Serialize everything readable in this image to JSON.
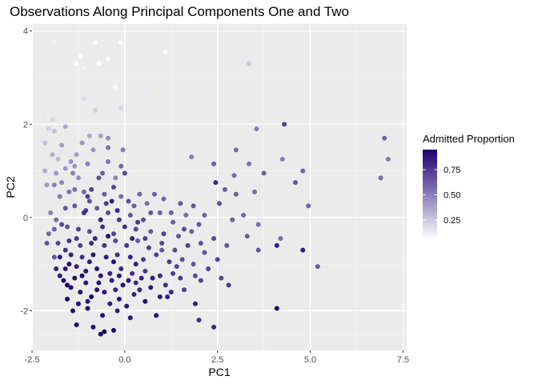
{
  "chart_data": {
    "type": "scatter",
    "title": "Observations Along Principal Components One and Two",
    "xlabel": "PC1",
    "ylabel": "PC2",
    "xlim": [
      -2.5,
      7.6
    ],
    "ylim": [
      -2.85,
      4.15
    ],
    "x_ticks": [
      -2.5,
      0,
      2.5,
      5,
      7.5
    ],
    "x_tick_labels": [
      "-2.5",
      "0.0",
      "2.5",
      "5.0",
      "7.5"
    ],
    "y_ticks": [
      -2,
      0,
      2,
      4
    ],
    "y_tick_labels": [
      "-2",
      "0",
      "2",
      "4"
    ],
    "grid": true,
    "background": "#EBEBEB",
    "legend": {
      "title": "Admitted Proportion",
      "position": "right",
      "range": [
        0.05,
        0.95
      ],
      "ticks": [
        0.25,
        0.5,
        0.75
      ],
      "tick_labels": [
        "0.25",
        "0.50",
        "0.75"
      ],
      "low_color": "#FFFFFF",
      "high_color": "#1A0070"
    },
    "points": [
      [
        -2.05,
        3.1,
        0.12
      ],
      [
        -1.9,
        3.75,
        0.1
      ],
      [
        -1.35,
        3.6,
        0.12
      ],
      [
        -1.2,
        3.45,
        0.06
      ],
      [
        -1.3,
        3.3,
        0.06
      ],
      [
        -0.8,
        3.75,
        0.06
      ],
      [
        -0.1,
        3.75,
        0.05
      ],
      [
        1.1,
        3.55,
        0.05
      ],
      [
        -0.45,
        3.4,
        0.06
      ],
      [
        -0.7,
        3.3,
        0.06
      ],
      [
        -1.55,
        3.1,
        0.12
      ],
      [
        -1.1,
        3.2,
        0.1
      ],
      [
        -0.9,
        3.1,
        0.12
      ],
      [
        -0.25,
        2.8,
        0.08
      ],
      [
        0.6,
        2.75,
        0.14
      ],
      [
        0.55,
        2.7,
        0.12
      ],
      [
        -1.1,
        2.55,
        0.18
      ],
      [
        -0.8,
        2.3,
        0.22
      ],
      [
        -0.1,
        2.35,
        0.2
      ],
      [
        3.35,
        3.3,
        0.25
      ],
      [
        -2.2,
        2.15,
        0.14
      ],
      [
        -1.95,
        2.1,
        0.2
      ],
      [
        -2.05,
        1.9,
        0.22
      ],
      [
        -1.9,
        1.85,
        0.28
      ],
      [
        -1.6,
        1.95,
        0.36
      ],
      [
        -1.15,
        1.6,
        0.42
      ],
      [
        -0.95,
        1.75,
        0.36
      ],
      [
        -0.65,
        1.75,
        0.38
      ],
      [
        -2.15,
        1.6,
        0.28
      ],
      [
        -1.95,
        1.35,
        0.34
      ],
      [
        -1.8,
        1.25,
        0.3
      ],
      [
        -1.3,
        1.35,
        0.4
      ],
      [
        -1.6,
        1.05,
        0.42
      ],
      [
        -0.85,
        1.45,
        0.44
      ],
      [
        -0.45,
        1.7,
        0.46
      ],
      [
        -0.45,
        1.5,
        0.56
      ],
      [
        -0.05,
        1.45,
        0.52
      ],
      [
        -0.1,
        1.1,
        0.6
      ],
      [
        -0.45,
        1.2,
        0.54
      ],
      [
        -1.35,
        1.1,
        0.44
      ],
      [
        -2.15,
        1.0,
        0.36
      ],
      [
        -1.85,
        0.95,
        0.42
      ],
      [
        -1.4,
        0.95,
        0.5
      ],
      [
        -1.7,
        0.75,
        0.48
      ],
      [
        -1.25,
        0.85,
        0.46
      ],
      [
        -0.7,
        0.85,
        0.66
      ],
      [
        -0.25,
        0.85,
        0.5
      ],
      [
        -1.9,
        0.7,
        0.5
      ],
      [
        -1.1,
        0.55,
        0.58
      ],
      [
        -1.5,
        0.55,
        0.55
      ],
      [
        -0.55,
        0.5,
        0.62
      ],
      [
        -0.1,
        0.45,
        0.58
      ],
      [
        0.4,
        0.5,
        0.6
      ],
      [
        0.8,
        0.5,
        0.62
      ],
      [
        -0.9,
        0.6,
        0.72
      ],
      [
        -1.0,
        0.45,
        0.74
      ],
      [
        -0.35,
        0.35,
        0.84
      ],
      [
        0.25,
        0.25,
        0.62
      ],
      [
        0.6,
        0.3,
        0.58
      ],
      [
        1.05,
        0.4,
        0.6
      ],
      [
        1.5,
        0.3,
        0.64
      ],
      [
        1.8,
        1.3,
        0.52
      ],
      [
        2.4,
        1.15,
        0.62
      ],
      [
        3.0,
        1.45,
        0.58
      ],
      [
        3.55,
        1.9,
        0.52
      ],
      [
        3.35,
        1.15,
        0.56
      ],
      [
        4.25,
        1.25,
        0.52
      ],
      [
        4.3,
        2.0,
        0.74
      ],
      [
        4.8,
        1.0,
        0.6
      ],
      [
        3.75,
        0.95,
        0.62
      ],
      [
        2.45,
        0.75,
        0.82
      ],
      [
        2.95,
        0.9,
        0.58
      ],
      [
        2.7,
        0.6,
        0.64
      ],
      [
        3.0,
        0.5,
        0.62
      ],
      [
        3.5,
        0.55,
        0.58
      ],
      [
        4.6,
        0.75,
        0.66
      ],
      [
        7.0,
        1.7,
        0.6
      ],
      [
        7.1,
        1.25,
        0.52
      ],
      [
        6.9,
        0.85,
        0.58
      ],
      [
        4.95,
        0.25,
        0.6
      ],
      [
        1.85,
        0.25,
        0.66
      ],
      [
        2.15,
        0.05,
        0.62
      ],
      [
        2.55,
        0.3,
        0.68
      ],
      [
        2.9,
        -0.05,
        0.62
      ],
      [
        3.2,
        0.05,
        0.6
      ],
      [
        3.6,
        -0.15,
        0.58
      ],
      [
        4.1,
        -0.6,
        0.84
      ],
      [
        4.2,
        -0.45,
        0.58
      ],
      [
        4.8,
        -0.7,
        0.86
      ],
      [
        5.2,
        -1.05,
        0.64
      ],
      [
        -2.0,
        0.1,
        0.5
      ],
      [
        -1.85,
        -0.05,
        0.58
      ],
      [
        -1.6,
        0.2,
        0.66
      ],
      [
        -1.35,
        0.25,
        0.64
      ],
      [
        -1.05,
        0.15,
        0.76
      ],
      [
        -0.75,
        0.2,
        0.64
      ],
      [
        -0.45,
        0.1,
        0.7
      ],
      [
        -0.15,
        -0.05,
        0.76
      ],
      [
        0.15,
        0.05,
        0.66
      ],
      [
        0.5,
        -0.05,
        0.7
      ],
      [
        0.95,
        0.1,
        0.6
      ],
      [
        1.3,
        -0.1,
        0.62
      ],
      [
        1.65,
        0.05,
        0.58
      ],
      [
        -1.9,
        -0.25,
        0.62
      ],
      [
        -1.55,
        -0.2,
        0.66
      ],
      [
        -1.25,
        -0.25,
        0.74
      ],
      [
        -0.95,
        -0.3,
        0.7
      ],
      [
        -0.6,
        -0.2,
        0.8
      ],
      [
        -0.3,
        -0.35,
        0.72
      ],
      [
        0.0,
        -0.2,
        0.78
      ],
      [
        0.3,
        -0.25,
        0.72
      ],
      [
        0.7,
        -0.3,
        0.64
      ],
      [
        1.05,
        -0.35,
        0.72
      ],
      [
        1.45,
        -0.4,
        0.66
      ],
      [
        1.8,
        -0.3,
        0.62
      ],
      [
        2.05,
        -0.55,
        0.68
      ],
      [
        2.4,
        -0.45,
        0.7
      ],
      [
        2.75,
        -0.6,
        0.66
      ],
      [
        3.3,
        -0.4,
        0.64
      ],
      [
        3.6,
        -0.7,
        0.66
      ],
      [
        -1.8,
        -0.55,
        0.72
      ],
      [
        -1.5,
        -0.5,
        0.78
      ],
      [
        -1.2,
        -0.6,
        0.74
      ],
      [
        -0.9,
        -0.55,
        0.82
      ],
      [
        -0.55,
        -0.6,
        0.78
      ],
      [
        -0.25,
        -0.5,
        0.7
      ],
      [
        0.05,
        -0.6,
        0.76
      ],
      [
        0.35,
        -0.5,
        0.64
      ],
      [
        0.65,
        -0.65,
        0.74
      ],
      [
        1.0,
        -0.55,
        0.7
      ],
      [
        1.35,
        -0.7,
        0.7
      ],
      [
        1.7,
        -0.6,
        0.72
      ],
      [
        2.15,
        -0.75,
        0.66
      ],
      [
        2.5,
        -0.9,
        0.72
      ],
      [
        -1.75,
        -0.85,
        0.86
      ],
      [
        -1.45,
        -0.8,
        0.84
      ],
      [
        -1.15,
        -0.85,
        0.8
      ],
      [
        -0.85,
        -0.8,
        0.88
      ],
      [
        -0.5,
        -0.85,
        0.86
      ],
      [
        -0.2,
        -0.8,
        0.8
      ],
      [
        0.15,
        -0.85,
        0.82
      ],
      [
        0.5,
        -0.9,
        0.76
      ],
      [
        0.85,
        -0.8,
        0.72
      ],
      [
        1.2,
        -0.95,
        0.74
      ],
      [
        1.55,
        -0.9,
        0.68
      ],
      [
        1.85,
        -1.0,
        0.66
      ],
      [
        2.25,
        -1.1,
        0.72
      ],
      [
        2.6,
        -1.3,
        0.7
      ],
      [
        2.8,
        -1.45,
        0.76
      ],
      [
        -1.6,
        -1.1,
        0.88
      ],
      [
        -1.3,
        -1.05,
        0.84
      ],
      [
        -1.05,
        -1.15,
        0.88
      ],
      [
        -0.75,
        -1.1,
        0.9
      ],
      [
        -0.4,
        -1.2,
        0.84
      ],
      [
        -0.1,
        -1.1,
        0.82
      ],
      [
        0.2,
        -1.2,
        0.8
      ],
      [
        0.55,
        -1.15,
        0.76
      ],
      [
        0.95,
        -1.25,
        0.82
      ],
      [
        1.3,
        -1.2,
        0.74
      ],
      [
        2.05,
        -1.35,
        0.72
      ],
      [
        -1.65,
        -1.35,
        0.92
      ],
      [
        -1.35,
        -1.3,
        0.9
      ],
      [
        -1.05,
        -1.4,
        0.88
      ],
      [
        -0.7,
        -1.4,
        0.9
      ],
      [
        -0.35,
        -1.35,
        0.86
      ],
      [
        -0.05,
        -1.45,
        0.9
      ],
      [
        0.3,
        -1.4,
        0.8
      ],
      [
        0.7,
        -1.5,
        0.86
      ],
      [
        1.1,
        -1.45,
        0.8
      ],
      [
        1.6,
        -1.55,
        0.74
      ],
      [
        -1.55,
        -1.75,
        0.95
      ],
      [
        -1.2,
        -1.6,
        0.9
      ],
      [
        -0.9,
        -1.7,
        0.92
      ],
      [
        -0.55,
        -1.6,
        0.88
      ],
      [
        -0.15,
        -1.75,
        0.9
      ],
      [
        0.25,
        -1.65,
        0.84
      ],
      [
        0.55,
        -1.8,
        0.92
      ],
      [
        0.95,
        -1.7,
        0.86
      ],
      [
        1.25,
        -1.6,
        0.82
      ],
      [
        1.9,
        -1.85,
        0.84
      ],
      [
        -1.4,
        -2.0,
        0.9
      ],
      [
        -1.0,
        -1.95,
        0.94
      ],
      [
        -0.6,
        -2.1,
        0.9
      ],
      [
        -0.2,
        -2.0,
        0.86
      ],
      [
        0.15,
        -2.15,
        0.88
      ],
      [
        0.85,
        -2.1,
        0.92
      ],
      [
        2.0,
        -2.2,
        0.8
      ],
      [
        2.4,
        -2.35,
        0.82
      ],
      [
        4.1,
        -1.95,
        0.95
      ],
      [
        -1.3,
        -2.3,
        0.92
      ],
      [
        -0.85,
        -2.35,
        0.92
      ],
      [
        -0.55,
        -2.45,
        0.95
      ],
      [
        -0.65,
        -2.5,
        0.92
      ],
      [
        -0.3,
        -2.42,
        0.94
      ],
      [
        -1.75,
        -1.25,
        0.86
      ],
      [
        -1.9,
        -0.85,
        0.66
      ],
      [
        -2.05,
        -0.35,
        0.6
      ],
      [
        -1.7,
        -0.15,
        0.7
      ],
      [
        -1.5,
        -1.0,
        0.9
      ],
      [
        -1.15,
        -1.25,
        0.92
      ],
      [
        -0.95,
        -0.95,
        0.86
      ],
      [
        -0.65,
        -1.25,
        0.88
      ],
      [
        -0.3,
        -0.95,
        0.9
      ],
      [
        0.1,
        -1.35,
        0.88
      ],
      [
        0.45,
        -1.3,
        0.84
      ],
      [
        0.75,
        -1.3,
        0.86
      ],
      [
        1.5,
        -1.3,
        0.76
      ],
      [
        1.9,
        -1.25,
        0.7
      ],
      [
        -1.45,
        -1.5,
        0.92
      ],
      [
        -1.0,
        -1.8,
        0.88
      ],
      [
        -0.75,
        -1.55,
        0.9
      ],
      [
        -0.25,
        -1.55,
        0.84
      ],
      [
        0.4,
        -1.55,
        0.82
      ],
      [
        1.15,
        -1.7,
        0.84
      ],
      [
        -1.6,
        -0.7,
        0.78
      ],
      [
        -1.3,
        -0.45,
        0.76
      ],
      [
        -0.8,
        -0.45,
        0.82
      ],
      [
        -0.45,
        -0.4,
        0.9
      ],
      [
        0.2,
        -0.45,
        0.84
      ],
      [
        0.55,
        -0.45,
        0.74
      ],
      [
        -1.1,
        0.1,
        0.8
      ],
      [
        -0.65,
        -0.05,
        0.84
      ],
      [
        -0.2,
        0.15,
        0.8
      ],
      [
        0.35,
        -0.1,
        0.76
      ],
      [
        0.7,
        0.1,
        0.66
      ],
      [
        1.25,
        0.1,
        0.62
      ],
      [
        1.6,
        -0.25,
        0.7
      ],
      [
        2.0,
        -0.15,
        0.66
      ],
      [
        -1.35,
        0.6,
        0.56
      ],
      [
        -0.3,
        0.65,
        0.72
      ],
      [
        -0.6,
        0.95,
        0.62
      ],
      [
        -1.0,
        1.15,
        0.5
      ],
      [
        0.0,
        0.95,
        0.7
      ],
      [
        -1.7,
        1.55,
        0.4
      ],
      [
        -1.45,
        1.2,
        0.44
      ],
      [
        -2.1,
        0.7,
        0.42
      ],
      [
        -1.75,
        0.45,
        0.52
      ],
      [
        -0.95,
        0.35,
        0.68
      ],
      [
        -0.5,
        0.3,
        0.74
      ],
      [
        0.1,
        0.35,
        0.68
      ],
      [
        1.0,
        -0.7,
        0.66
      ],
      [
        1.4,
        -1.05,
        0.72
      ],
      [
        0.3,
        -1.0,
        0.84
      ],
      [
        -0.15,
        -1.25,
        0.86
      ],
      [
        -2.1,
        -0.55,
        0.66
      ],
      [
        -1.85,
        -1.1,
        0.84
      ],
      [
        -1.55,
        -1.45,
        0.94
      ],
      [
        -1.25,
        -1.85,
        0.9
      ],
      [
        -0.4,
        -1.85,
        0.86
      ],
      [
        0.05,
        -1.9,
        0.88
      ]
    ]
  }
}
